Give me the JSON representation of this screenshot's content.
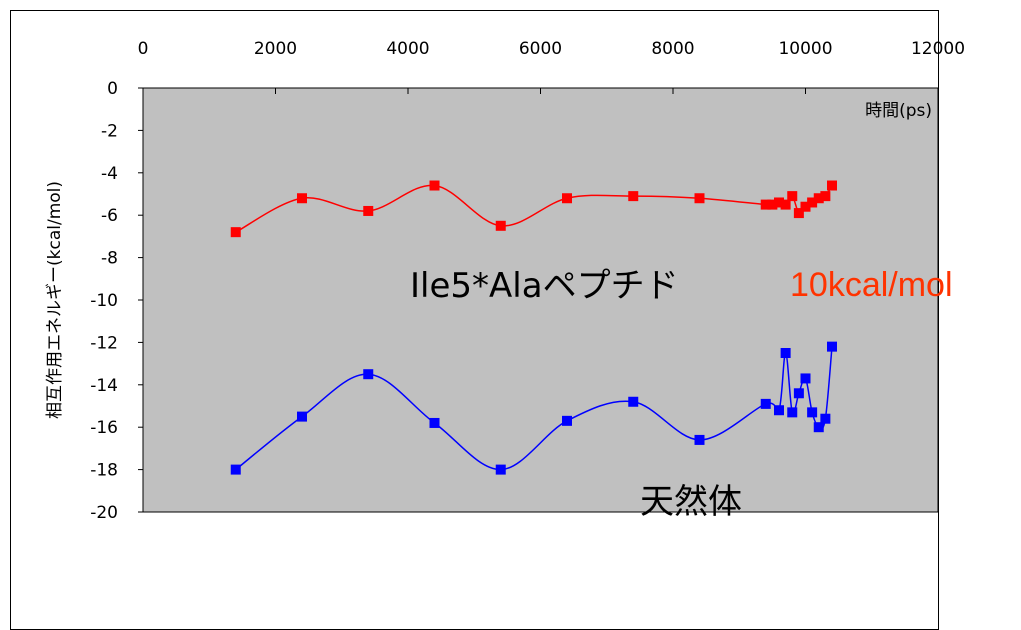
{
  "chart_data": {
    "type": "line",
    "title": "",
    "xlabel": "時間(ps)",
    "ylabel": "相互作用エネルギー(kcal/mol)",
    "xlim": [
      0,
      12000
    ],
    "ylim": [
      -20,
      0
    ],
    "xticks": [
      "0",
      "2000",
      "4000",
      "6000",
      "8000",
      "10000",
      "12000"
    ],
    "yticks": [
      "0",
      "-2",
      "-4",
      "-6",
      "-8",
      "-10",
      "-12",
      "-14",
      "-16",
      "-18",
      "-20"
    ],
    "grid": false,
    "plot_background": "#c0c0c0",
    "series": [
      {
        "color": "#ff0000",
        "x": [
          1400,
          2400,
          3400,
          4400,
          5400,
          6400,
          7400,
          8400,
          9400,
          9500,
          9600,
          9700,
          9800,
          9900,
          10000,
          10100,
          10200,
          10300,
          10400
        ],
        "y": [
          -6.8,
          -5.2,
          -5.8,
          -4.6,
          -6.5,
          -5.2,
          -5.1,
          -5.2,
          -5.5,
          -5.5,
          -5.4,
          -5.5,
          -5.1,
          -5.9,
          -5.6,
          -5.4,
          -5.2,
          -5.1,
          -4.6
        ]
      },
      {
        "color": "#0000ff",
        "x": [
          1400,
          2400,
          3400,
          4400,
          5400,
          6400,
          7400,
          8400,
          9400,
          9600,
          9700,
          9800,
          9900,
          10000,
          10100,
          10200,
          10300,
          10400
        ],
        "y": [
          -18.0,
          -15.5,
          -13.5,
          -15.8,
          -18.0,
          -15.7,
          -14.8,
          -16.6,
          -14.9,
          -15.2,
          -12.5,
          -15.3,
          -14.4,
          -13.7,
          -15.3,
          -16.0,
          -15.6,
          -12.2
        ]
      }
    ]
  },
  "annotations": {
    "peptide_label": "Ile5*Alaペプチド",
    "native_label": "天然体",
    "difference_label": "10kcal/mol"
  }
}
